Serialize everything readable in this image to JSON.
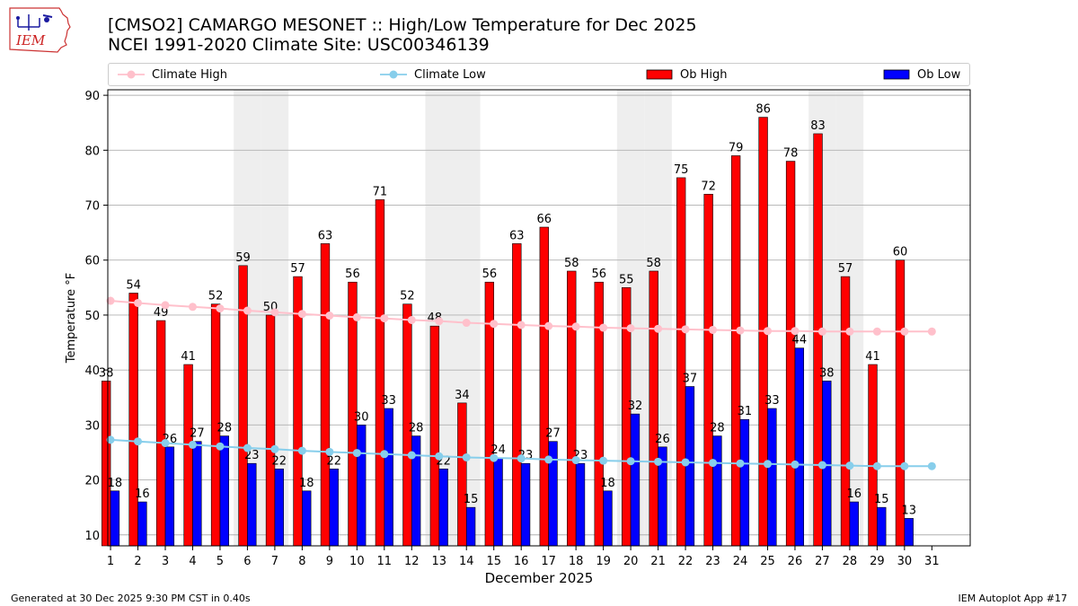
{
  "header": {
    "logo_text": "IEM",
    "title_line1": "[CMSO2] CAMARGO MESONET :: High/Low Temperature for Dec 2025",
    "title_line2": "NCEI 1991-2020 Climate Site: USC00346139"
  },
  "footer": {
    "generated": "Generated at 30 Dec 2025 9:30 PM CST in 0.40s",
    "app": "IEM Autoplot App #17"
  },
  "colors": {
    "ob_high": "#ff0000",
    "ob_low": "#0000ff",
    "climate_high": "#ffc0cb",
    "climate_low": "#87ceeb",
    "weekend_shade": "#eeeeee",
    "grid": "#b0b0b0"
  },
  "chart_data": {
    "type": "bar",
    "xlabel": "December 2025",
    "ylabel": "Temperature °F",
    "ylim": [
      8,
      91
    ],
    "yticks": [
      10,
      20,
      30,
      40,
      50,
      60,
      70,
      80,
      90
    ],
    "grid": "horizontal",
    "legend_position": "top",
    "categories": [
      "1",
      "2",
      "3",
      "4",
      "5",
      "6",
      "7",
      "8",
      "9",
      "10",
      "11",
      "12",
      "13",
      "14",
      "15",
      "16",
      "17",
      "18",
      "19",
      "20",
      "21",
      "22",
      "23",
      "24",
      "25",
      "26",
      "27",
      "28",
      "29",
      "30",
      "31"
    ],
    "shaded_days": [
      6,
      7,
      13,
      14,
      20,
      21,
      27,
      28
    ],
    "series": [
      {
        "name": "Ob High",
        "kind": "bar",
        "values": [
          38,
          54,
          49,
          41,
          52,
          59,
          50,
          57,
          63,
          56,
          71,
          52,
          48,
          34,
          56,
          63,
          66,
          58,
          56,
          55,
          58,
          75,
          72,
          79,
          86,
          78,
          83,
          57,
          41,
          60,
          null
        ]
      },
      {
        "name": "Ob Low",
        "kind": "bar",
        "values": [
          18,
          16,
          26,
          27,
          28,
          23,
          22,
          18,
          22,
          30,
          33,
          28,
          22,
          15,
          24,
          23,
          27,
          23,
          18,
          32,
          26,
          37,
          28,
          31,
          33,
          44,
          38,
          16,
          15,
          13,
          null
        ]
      },
      {
        "name": "Climate High",
        "kind": "line",
        "values": [
          52.6,
          52.2,
          51.8,
          51.5,
          51.2,
          50.8,
          50.5,
          50.2,
          49.9,
          49.6,
          49.4,
          49.1,
          48.9,
          48.6,
          48.4,
          48.2,
          48.0,
          47.9,
          47.7,
          47.6,
          47.5,
          47.4,
          47.3,
          47.2,
          47.1,
          47.1,
          47.0,
          47.0,
          47.0,
          47.0,
          47.0
        ]
      },
      {
        "name": "Climate Low",
        "kind": "line",
        "values": [
          27.3,
          27.0,
          26.7,
          26.4,
          26.1,
          25.8,
          25.6,
          25.3,
          25.1,
          24.9,
          24.7,
          24.5,
          24.3,
          24.1,
          24.0,
          23.9,
          23.7,
          23.6,
          23.5,
          23.4,
          23.3,
          23.2,
          23.1,
          23.0,
          22.9,
          22.8,
          22.7,
          22.6,
          22.5,
          22.5,
          22.5
        ]
      }
    ]
  }
}
